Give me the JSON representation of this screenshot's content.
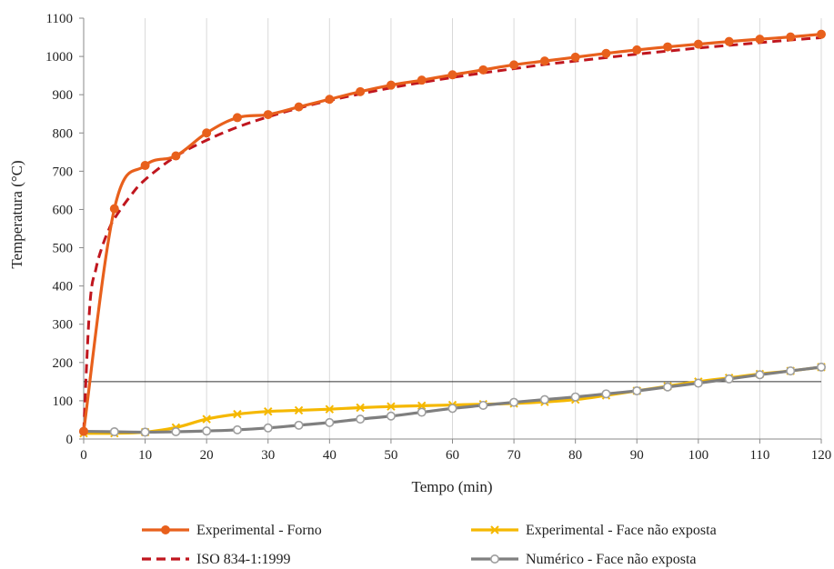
{
  "chart_data": {
    "type": "line",
    "xlabel": "Tempo (min)",
    "ylabel": "Temperatura (°C)",
    "xlim": [
      0,
      120
    ],
    "ylim": [
      0,
      1100
    ],
    "x_ticks": [
      0,
      10,
      20,
      30,
      40,
      50,
      60,
      70,
      80,
      90,
      100,
      110,
      120
    ],
    "y_ticks": [
      0,
      100,
      200,
      300,
      400,
      500,
      600,
      700,
      800,
      900,
      1000,
      1100
    ],
    "grid": "vertical",
    "reference_line": {
      "y": 150
    },
    "legend_position": "bottom",
    "series": [
      {
        "name": "Experimental - Forno",
        "color": "#E8601C",
        "style": "solid",
        "marker": "circle",
        "x": [
          0,
          5,
          10,
          15,
          20,
          25,
          30,
          35,
          40,
          45,
          50,
          55,
          60,
          65,
          70,
          75,
          80,
          85,
          90,
          95,
          100,
          105,
          110,
          115,
          120
        ],
        "y": [
          20,
          602,
          715,
          740,
          800,
          840,
          848,
          868,
          888,
          908,
          925,
          938,
          952,
          965,
          978,
          988,
          998,
          1008,
          1017,
          1025,
          1032,
          1039,
          1045,
          1051,
          1058
        ]
      },
      {
        "name": "ISO 834-1:1999",
        "color": "#C0161E",
        "style": "dashed",
        "marker": "none",
        "x": [
          0,
          1,
          2,
          3,
          4,
          5,
          7.5,
          10,
          15,
          20,
          25,
          30,
          35,
          40,
          45,
          50,
          55,
          60,
          65,
          70,
          75,
          80,
          85,
          90,
          95,
          100,
          105,
          110,
          115,
          120
        ],
        "y": [
          20,
          349,
          445,
          502,
          544,
          576,
          633,
          678,
          739,
          781,
          815,
          842,
          865,
          885,
          902,
          918,
          932,
          945,
          957,
          968,
          979,
          988,
          997,
          1006,
          1014,
          1022,
          1029,
          1036,
          1043,
          1049
        ]
      },
      {
        "name": "Experimental - Face não exposta",
        "color": "#F5B800",
        "style": "solid",
        "marker": "x",
        "x": [
          0,
          5,
          10,
          15,
          20,
          25,
          30,
          35,
          40,
          45,
          50,
          55,
          60,
          65,
          70,
          75,
          80,
          85,
          90,
          95,
          100,
          105,
          110,
          115,
          120
        ],
        "y": [
          15,
          15,
          18,
          30,
          52,
          65,
          72,
          75,
          78,
          82,
          85,
          87,
          89,
          91,
          93,
          97,
          103,
          114,
          126,
          138,
          150,
          160,
          170,
          178,
          188
        ]
      },
      {
        "name": "Numérico - Face não exposta",
        "color": "#7F7F7F",
        "style": "solid",
        "marker": "open-circle",
        "x": [
          0,
          5,
          10,
          15,
          20,
          25,
          30,
          35,
          40,
          45,
          50,
          55,
          60,
          65,
          70,
          75,
          80,
          85,
          90,
          95,
          100,
          105,
          110,
          115,
          120
        ],
        "y": [
          20,
          19,
          18,
          19,
          21,
          24,
          29,
          36,
          43,
          52,
          60,
          70,
          80,
          88,
          96,
          103,
          110,
          118,
          126,
          136,
          146,
          157,
          168,
          178,
          188
        ]
      }
    ]
  }
}
